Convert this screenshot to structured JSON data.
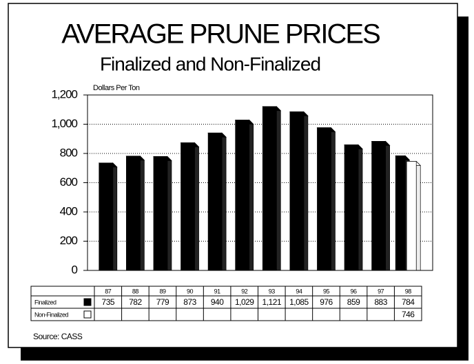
{
  "chart_data": {
    "type": "bar",
    "title": "AVERAGE PRUNE PRICES",
    "subtitle": "Finalized and Non-Finalized",
    "y_label": "Dollars Per Ton",
    "source": "Source: CASS",
    "categories": [
      "87",
      "88",
      "89",
      "90",
      "91",
      "92",
      "93",
      "94",
      "95",
      "96",
      "97",
      "98"
    ],
    "series": [
      {
        "name": "Finalized",
        "color": "#000000",
        "values": [
          735,
          782,
          779,
          873,
          940,
          1029,
          1121,
          1085,
          976,
          859,
          883,
          784
        ],
        "value_labels": [
          "735",
          "782",
          "779",
          "873",
          "940",
          "1,029",
          "1,121",
          "1,085",
          "976",
          "859",
          "883",
          "784"
        ]
      },
      {
        "name": "Non-Finalized",
        "color": "#ffffff",
        "values": [
          null,
          null,
          null,
          null,
          null,
          null,
          null,
          null,
          null,
          null,
          null,
          746
        ],
        "value_labels": [
          null,
          null,
          null,
          null,
          null,
          null,
          null,
          null,
          null,
          null,
          null,
          "746"
        ]
      }
    ],
    "ylim": [
      0,
      1200
    ],
    "yticks": [
      0,
      200,
      400,
      600,
      800,
      {
        "value": 1000,
        "label": "1,000"
      },
      {
        "value": 1200,
        "label": "1,200"
      }
    ],
    "grid": true
  }
}
